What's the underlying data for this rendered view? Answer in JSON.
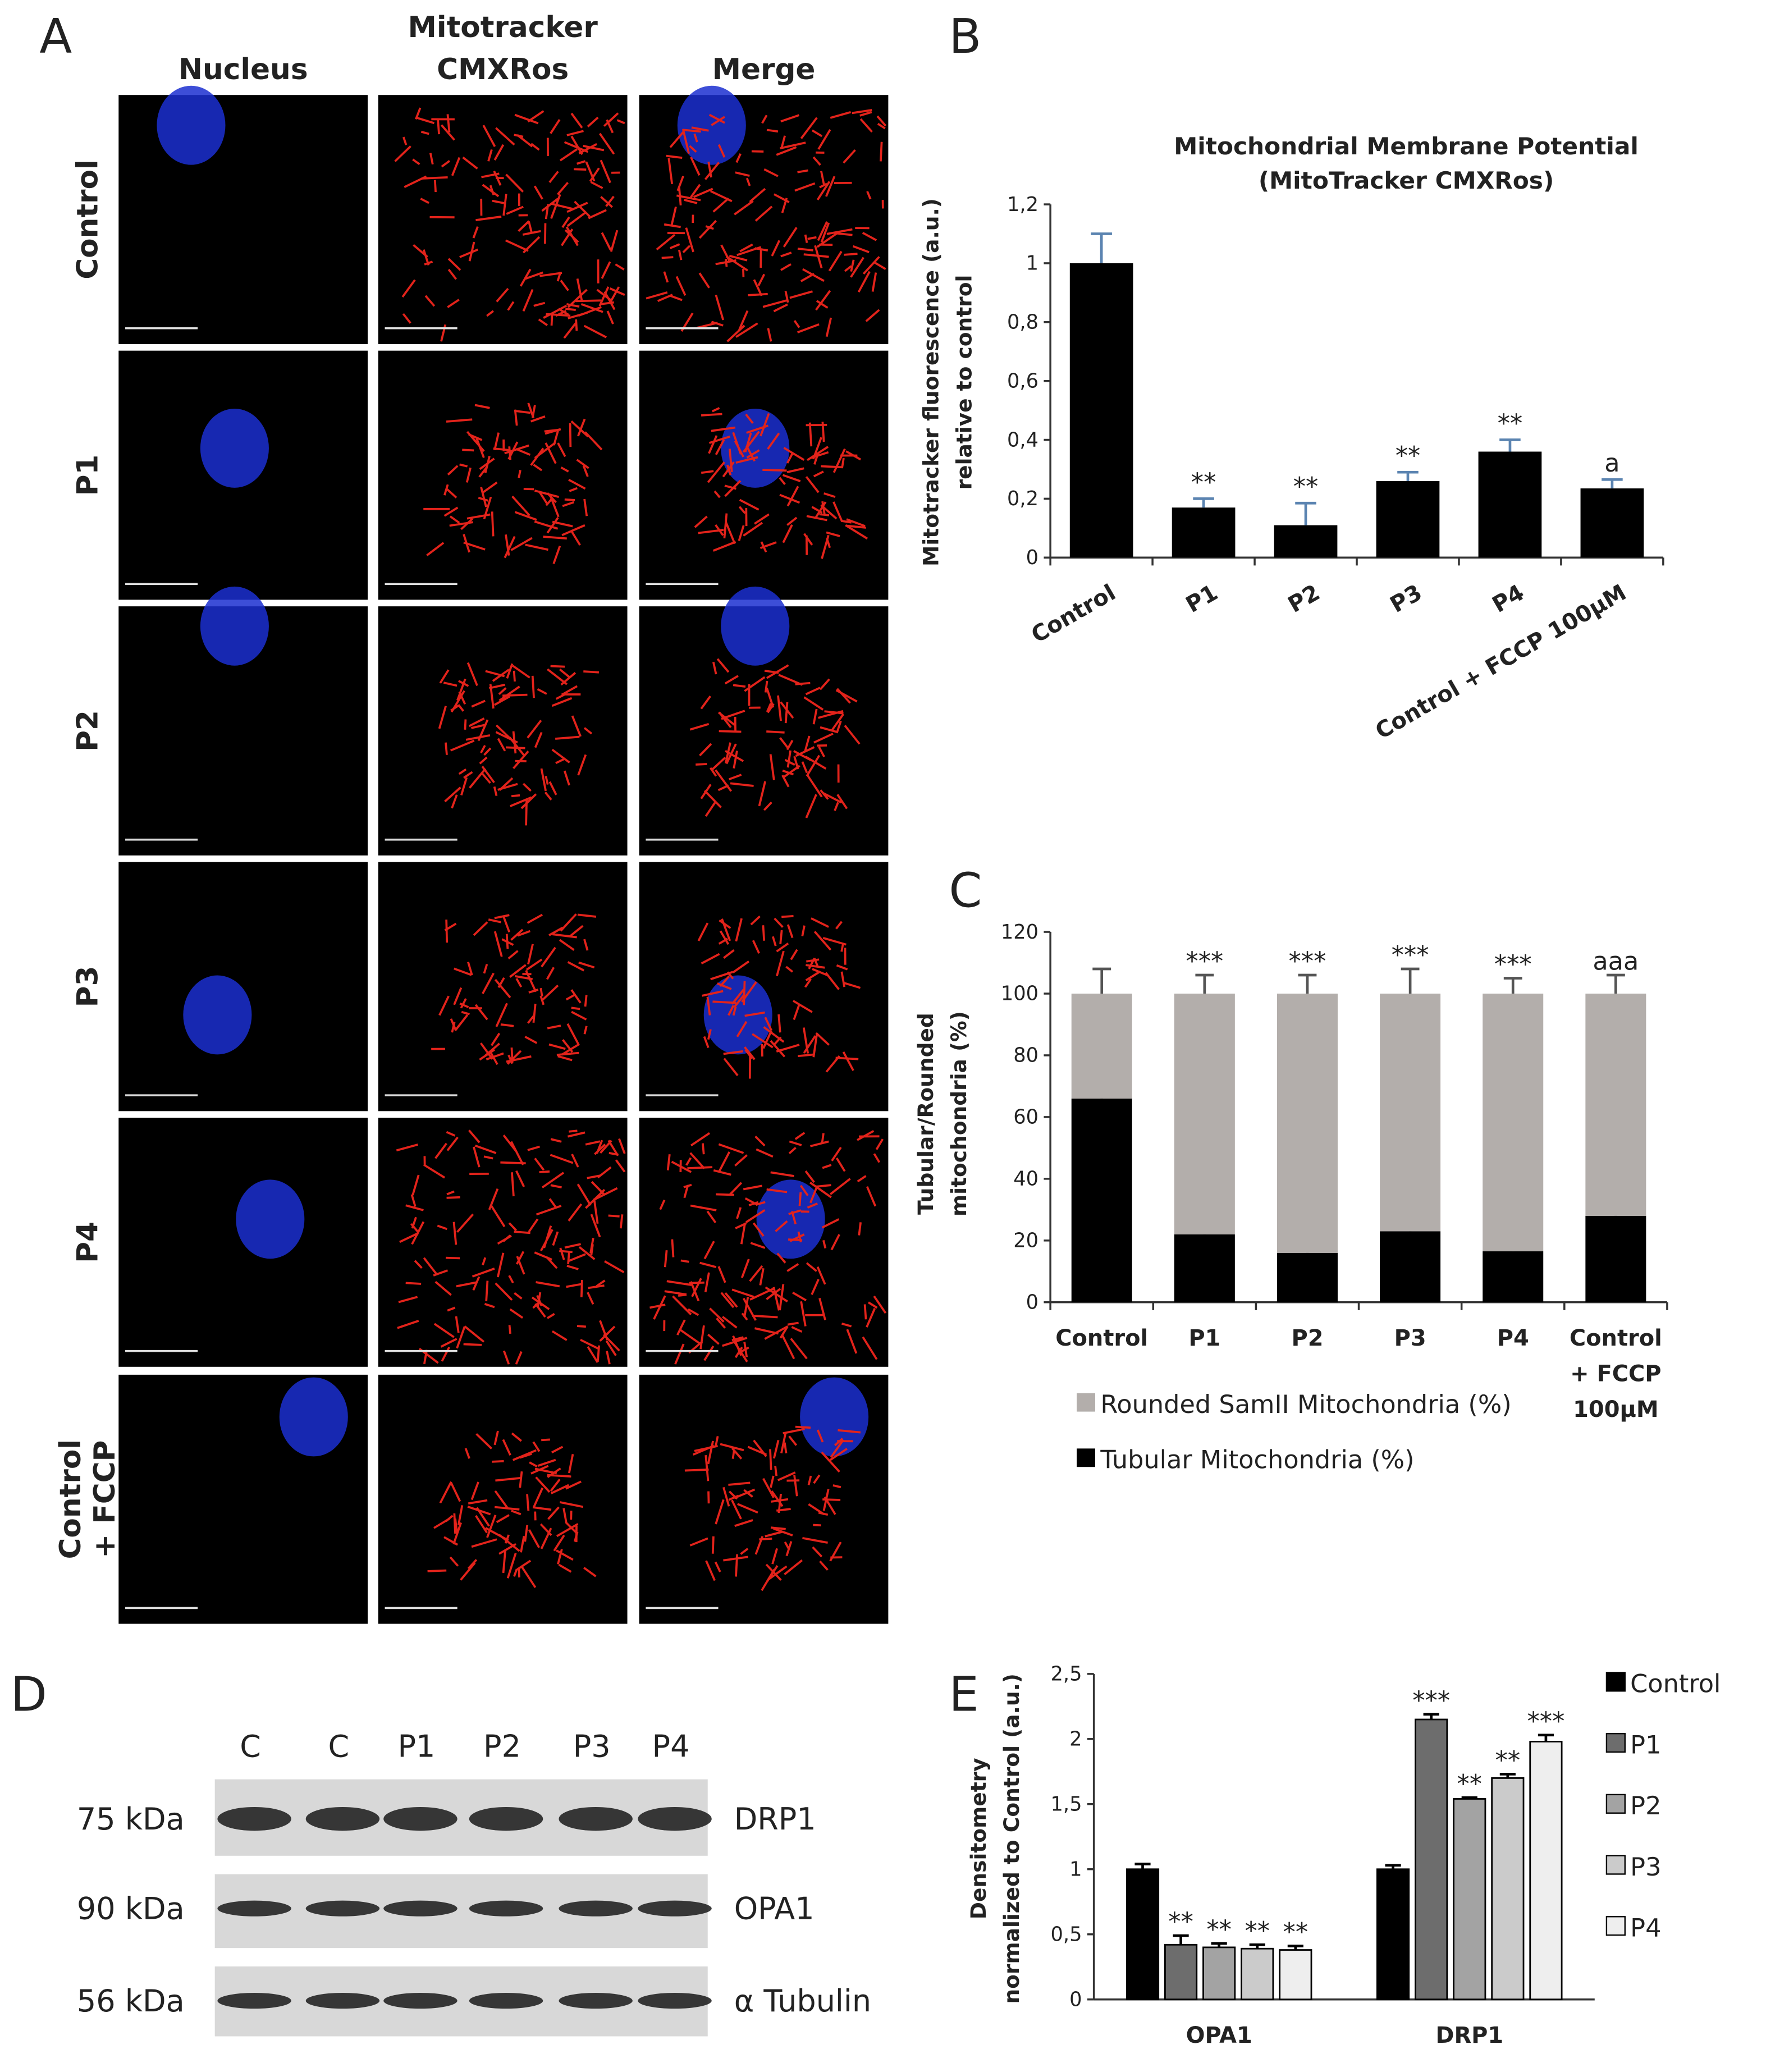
{
  "panel_a": {
    "letter": "A",
    "columns": [
      [
        "Nucleus"
      ],
      [
        "Mitotracker",
        "CMXRos"
      ],
      [
        "Merge"
      ]
    ],
    "rows": [
      [
        "Control"
      ],
      [
        "P1"
      ],
      [
        "P2"
      ],
      [
        "P3"
      ],
      [
        "P4"
      ],
      [
        "Control",
        "+ FCCP"
      ]
    ]
  },
  "panel_d": {
    "letter": "D",
    "lanes": [
      "C",
      "C",
      "P1",
      "P2",
      "P3",
      "P4"
    ],
    "blots": [
      {
        "size": "75 kDa",
        "protein": "DRP1"
      },
      {
        "size": "90 kDa",
        "protein": "OPA1"
      },
      {
        "size": "56 kDa",
        "protein": "α Tubulin"
      }
    ]
  },
  "chart_data": [
    {
      "panel": "B",
      "type": "bar",
      "title": [
        "Mitochondrial Membrane Potential",
        "(MitoTracker CMXRos)"
      ],
      "y_label": [
        "Mitotracker fluorescence (a.u.)",
        "relative to control"
      ],
      "categories": [
        "Control",
        "P1",
        "P2",
        "P3",
        "P4",
        "Control + FCCP 100μM"
      ],
      "values": [
        1.0,
        0.17,
        0.11,
        0.26,
        0.36,
        0.235
      ],
      "errors": [
        0.1,
        0.03,
        0.075,
        0.03,
        0.04,
        0.03
      ],
      "significance": [
        null,
        "**",
        "**",
        "**",
        "**",
        "a"
      ],
      "color": "#000000",
      "error_color": "#5b84b1",
      "ylim": [
        0,
        1.2
      ],
      "yticks": [
        0,
        {
          "value": 0.2,
          "label": "0,2"
        },
        {
          "value": 0.4,
          "label": "0,4"
        },
        {
          "value": 0.6,
          "label": "0,6"
        },
        {
          "value": 0.8,
          "label": "0,8"
        },
        1,
        {
          "value": 1.2,
          "label": "1,2"
        }
      ]
    },
    {
      "panel": "C",
      "type": "stacked_bar",
      "y_label": [
        "Tubular/Rounded",
        "mitochondria (%)"
      ],
      "categories": [
        "Control",
        "P1",
        "P2",
        "P3",
        "P4",
        "Control + FCCP 100μM"
      ],
      "series": [
        {
          "name": "Rounded SamII Mitochondria (%)",
          "color": "#b3aeab",
          "values": [
            34,
            78,
            84,
            77,
            83.5,
            72
          ],
          "errors": [
            8,
            6,
            6,
            8,
            5,
            6
          ],
          "significance": [
            null,
            "***",
            "***",
            "***",
            "***",
            "aaa"
          ]
        },
        {
          "name": "Tubular Mitochondria (%)",
          "color": "#000000",
          "values": [
            66,
            22,
            16,
            23,
            16.5,
            28
          ],
          "errors": [
            8,
            6,
            6,
            8,
            5,
            6
          ],
          "significance": [
            null,
            "***",
            "***",
            "***",
            "***",
            "aaa"
          ]
        }
      ],
      "error_color": "#555555",
      "ylim": [
        0,
        120
      ],
      "yticks": [
        0,
        20,
        40,
        60,
        80,
        100,
        120
      ]
    },
    {
      "panel": "E",
      "type": "grouped_bar",
      "y_label": [
        "Densitometry",
        "normalized to Control (a.u.)"
      ],
      "categories": [
        "OPA1",
        "DRP1"
      ],
      "series": [
        {
          "name": "Control",
          "color": "#000000",
          "values": [
            1.0,
            1.0
          ],
          "errors": [
            0.04,
            0.03
          ],
          "significance": [
            null,
            null
          ]
        },
        {
          "name": "P1",
          "color": "#6d6d6d",
          "values": [
            0.42,
            2.15
          ],
          "errors": [
            0.07,
            0.04
          ],
          "significance": [
            "**",
            "***"
          ]
        },
        {
          "name": "P2",
          "color": "#a3a3a3",
          "values": [
            0.4,
            1.54
          ],
          "errors": [
            0.03,
            0.01
          ],
          "significance": [
            "**",
            "**"
          ]
        },
        {
          "name": "P3",
          "color": "#cbcbcb",
          "values": [
            0.39,
            1.7
          ],
          "errors": [
            0.03,
            0.03
          ],
          "significance": [
            "**",
            "**"
          ]
        },
        {
          "name": "P4",
          "color": "#eeeeee",
          "values": [
            0.38,
            1.98
          ],
          "errors": [
            0.03,
            0.05
          ],
          "significance": [
            "**",
            "***"
          ]
        }
      ],
      "error_color": "#000000",
      "ylim": [
        0,
        2.5
      ],
      "yticks": [
        0,
        {
          "value": 0.5,
          "label": "0,5"
        },
        1,
        {
          "value": 1.5,
          "label": "1,5"
        },
        2,
        {
          "value": 2.5,
          "label": "2,5"
        }
      ]
    }
  ]
}
